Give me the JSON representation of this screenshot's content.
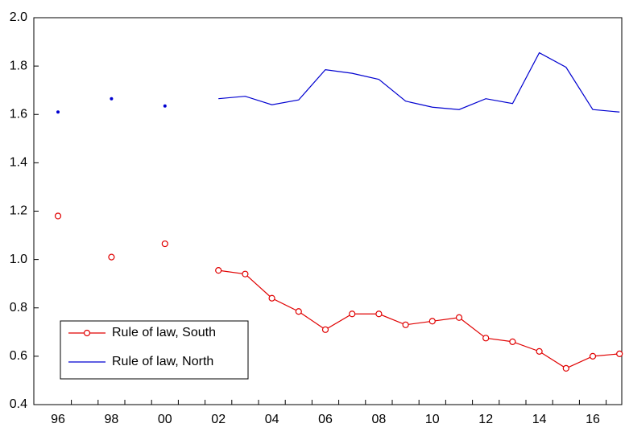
{
  "chart_data": {
    "type": "line",
    "categories": [
      "96",
      null,
      "98",
      null,
      "00",
      null,
      "02",
      null,
      "04",
      null,
      "06",
      null,
      "08",
      null,
      "10",
      null,
      "12",
      null,
      "14",
      null,
      "16",
      null
    ],
    "series": [
      {
        "name": "Rule of law, South",
        "color": "#e00000",
        "marker": "circle",
        "values": [
          1.18,
          null,
          1.01,
          null,
          1.065,
          null,
          0.955,
          0.94,
          0.84,
          0.785,
          0.71,
          0.775,
          0.775,
          0.73,
          0.745,
          0.76,
          0.675,
          0.66,
          0.62,
          0.55,
          0.6,
          0.61
        ]
      },
      {
        "name": "Rule of law, North",
        "color": "#0000d0",
        "values": [
          1.61,
          null,
          1.665,
          null,
          1.635,
          null,
          1.665,
          1.675,
          1.64,
          1.66,
          1.785,
          1.77,
          1.745,
          1.655,
          1.63,
          1.62,
          1.665,
          1.645,
          1.855,
          1.795,
          1.62,
          1.61
        ]
      }
    ],
    "ylim": [
      0.4,
      2.0
    ],
    "yticks": [
      0.4,
      0.6,
      0.8,
      {
        "value": 1.0,
        "label": "1.0"
      },
      1.2,
      1.4,
      1.6,
      1.8,
      {
        "value": 2.0,
        "label": "2.0"
      }
    ],
    "legend": "lower left"
  }
}
